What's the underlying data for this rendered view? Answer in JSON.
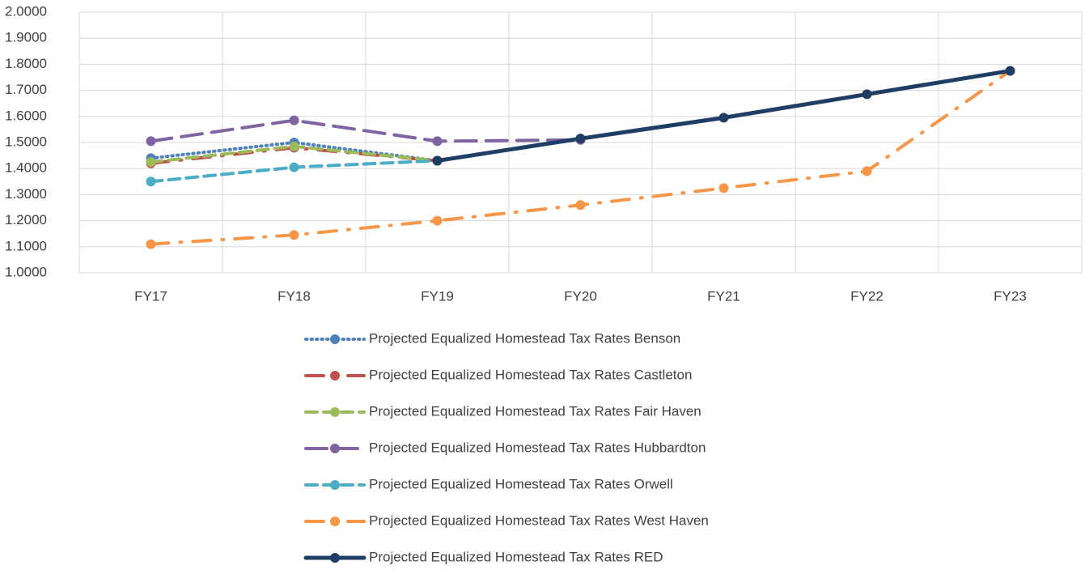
{
  "chart_data": {
    "type": "line",
    "categories": [
      "FY17",
      "FY18",
      "FY19",
      "FY20",
      "FY21",
      "FY22",
      "FY23"
    ],
    "series": [
      {
        "name": "Projected Equalized Homestead Tax Rates Benson",
        "color": "#4f81bd",
        "line_style": "dotted",
        "values": [
          1.44,
          1.5,
          1.43,
          null,
          null,
          null,
          null
        ]
      },
      {
        "name": "Projected Equalized Homestead Tax Rates Castleton",
        "color": "#c0504d",
        "line_style": "long-dash-dot",
        "values": [
          1.42,
          1.48,
          1.43,
          null,
          null,
          null,
          null
        ]
      },
      {
        "name": "Projected Equalized Homestead Tax Rates Fair Haven",
        "color": "#9bbb59",
        "line_style": "dashed",
        "values": [
          1.425,
          1.485,
          1.43,
          null,
          null,
          null,
          null
        ]
      },
      {
        "name": "Projected Equalized Homestead Tax Rates Hubbardton",
        "color": "#8064a2",
        "line_style": "long-dash",
        "values": [
          1.505,
          1.585,
          1.505,
          1.51,
          null,
          null,
          null
        ]
      },
      {
        "name": "Projected Equalized Homestead Tax Rates Orwell",
        "color": "#4bacc6",
        "line_style": "dashed",
        "values": [
          1.35,
          1.405,
          1.43,
          null,
          null,
          null,
          null
        ]
      },
      {
        "name": "Projected Equalized Homestead Tax Rates West Haven",
        "color": "#f79646",
        "line_style": "long-dash-dot",
        "values": [
          1.11,
          1.145,
          1.2,
          1.26,
          1.325,
          1.39,
          1.775
        ]
      },
      {
        "name": "Projected Equalized Homestead Tax Rates RED",
        "color": "#1f3e66",
        "line_style": "solid",
        "values": [
          null,
          null,
          1.43,
          1.515,
          1.595,
          1.685,
          1.775
        ]
      }
    ],
    "ylim": [
      1,
      2
    ],
    "yticks": [
      {
        "value": 1,
        "label": "1.0000"
      },
      {
        "value": 1.1,
        "label": "1.1000"
      },
      {
        "value": 1.2,
        "label": "1.2000"
      },
      {
        "value": 1.3,
        "label": "1.3000"
      },
      {
        "value": 1.4,
        "label": "1.4000"
      },
      {
        "value": 1.5,
        "label": "1.5000"
      },
      {
        "value": 1.6,
        "label": "1.6000"
      },
      {
        "value": 1.7,
        "label": "1.7000"
      },
      {
        "value": 1.8,
        "label": "1.8000"
      },
      {
        "value": 1.9,
        "label": "1.9000"
      },
      {
        "value": 2,
        "label": "2.0000"
      }
    ],
    "grid": true,
    "legend": "bottom"
  }
}
